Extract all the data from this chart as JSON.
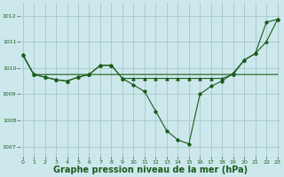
{
  "bg_color": "#cce8ec",
  "grid_color": "#aacccc",
  "line_color": "#1a5c1a",
  "marker_color": "#1a5c1a",
  "xlabel": "Graphe pression niveau de la mer (hPa)",
  "xlabel_fontsize": 7.0,
  "ylabel_ticks": [
    1007,
    1008,
    1009,
    1010,
    1011,
    1012
  ],
  "xticks": [
    0,
    1,
    2,
    3,
    4,
    5,
    6,
    7,
    8,
    9,
    10,
    11,
    12,
    13,
    14,
    15,
    16,
    17,
    18,
    19,
    20,
    21,
    22,
    23
  ],
  "ylim": [
    1006.6,
    1012.5
  ],
  "xlim": [
    -0.3,
    23.3
  ],
  "series1_flat": 1009.97,
  "series1": [
    1010.5,
    1009.75,
    1009.75,
    1009.75,
    1009.75,
    1009.75,
    1009.75,
    1009.75,
    1009.75,
    1009.75,
    1009.75,
    1009.75,
    1009.75,
    1009.75,
    1009.75,
    1009.75,
    1009.75,
    1009.75,
    1009.75,
    1009.75,
    1009.75,
    1009.75,
    1009.75,
    1009.75
  ],
  "series2": [
    1010.5,
    1009.75,
    1009.65,
    1009.55,
    1009.5,
    1009.65,
    1009.75,
    1010.1,
    1010.1,
    1009.6,
    1009.35,
    1009.1,
    1008.35,
    1007.6,
    1007.25,
    1007.1,
    1009.0,
    1009.3,
    1009.5,
    1009.8,
    1010.3,
    1010.55,
    1011.75,
    1011.85
  ],
  "series3": [
    1010.5,
    1009.75,
    1009.65,
    1009.55,
    1009.5,
    1009.65,
    1009.75,
    1010.1,
    1010.1,
    1009.6,
    1009.6,
    1009.6,
    1009.6,
    1009.6,
    1009.6,
    1009.6,
    1009.6,
    1009.6,
    1009.6,
    1009.75,
    1010.3,
    1010.55,
    1011.0,
    1011.85
  ]
}
